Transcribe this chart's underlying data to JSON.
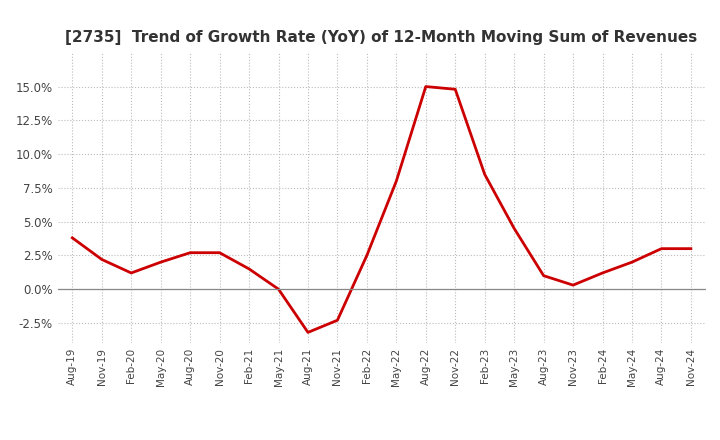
{
  "title": "[2735]  Trend of Growth Rate (YoY) of 12-Month Moving Sum of Revenues",
  "x_labels": [
    "Aug-19",
    "Nov-19",
    "Feb-20",
    "May-20",
    "Aug-20",
    "Nov-20",
    "Feb-21",
    "May-21",
    "Aug-21",
    "Nov-21",
    "Feb-22",
    "May-22",
    "Aug-22",
    "Nov-22",
    "Feb-23",
    "May-23",
    "Aug-23",
    "Nov-23",
    "Feb-24",
    "May-24",
    "Aug-24",
    "Nov-24"
  ],
  "y_values": [
    0.038,
    0.022,
    0.012,
    0.02,
    0.027,
    0.027,
    0.015,
    0.0,
    -0.032,
    -0.023,
    0.025,
    0.08,
    0.15,
    0.148,
    0.085,
    0.045,
    0.01,
    0.003,
    0.012,
    0.02,
    0.03,
    0.03
  ],
  "line_color": "#cc0000",
  "line_width": 2.0,
  "ylim": [
    -0.04,
    0.175
  ],
  "yticks": [
    -0.025,
    0.0,
    0.025,
    0.05,
    0.075,
    0.1,
    0.125,
    0.15
  ],
  "grid_color": "#bbbbbb",
  "background_color": "#ffffff",
  "title_fontsize": 11,
  "title_color": "#333333"
}
